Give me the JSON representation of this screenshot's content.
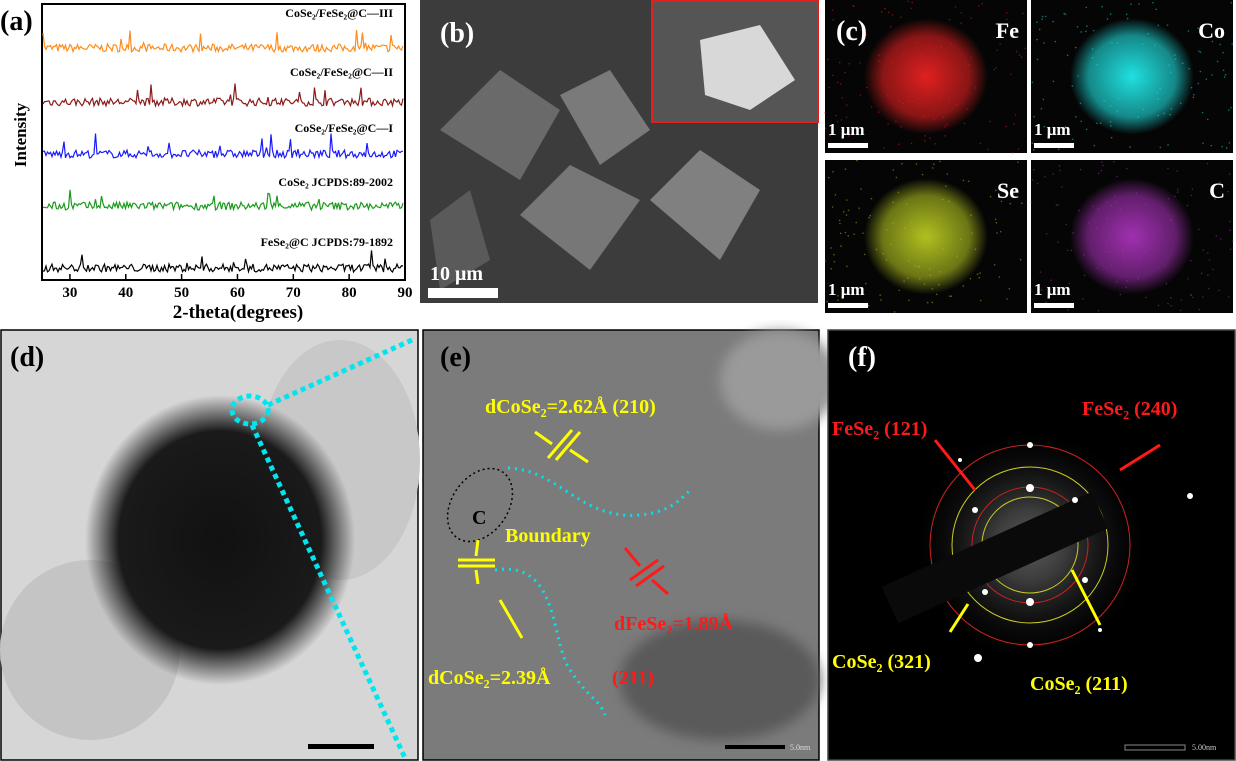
{
  "panels": {
    "a": {
      "label": "(a)",
      "ylabel": "Intensity",
      "xlabel": "2-theta(degrees)",
      "xlim": [
        25,
        90
      ],
      "xticks": [
        30,
        40,
        50,
        60,
        70,
        80,
        90
      ],
      "series": [
        {
          "name": "CoSe₂/FeSe₂@C—III",
          "color": "#ff8c1a"
        },
        {
          "name": "CoSe₂/FeSe₂@C—II",
          "color": "#8b1a1a"
        },
        {
          "name": "CoSe₂/FeSe₂@C—I",
          "color": "#1a1aff"
        },
        {
          "name": "CoSe₂ JCPDS:89-2002",
          "color": "#1a9a1a"
        },
        {
          "name": "FeSe₂@C JCPDS:79-1892",
          "color": "#000000"
        }
      ]
    },
    "b": {
      "label": "(b)",
      "scale": "10 μm"
    },
    "c": {
      "label": "(c)",
      "maps": [
        {
          "element": "Fe",
          "color": "#e02020",
          "scale": "1 μm"
        },
        {
          "element": "Co",
          "color": "#20e0e0",
          "scale": "1 μm"
        },
        {
          "element": "Se",
          "color": "#b0c020",
          "scale": "1 μm"
        },
        {
          "element": "C",
          "color": "#a030b0",
          "scale": "1 μm"
        }
      ]
    },
    "d": {
      "label": "(d)"
    },
    "e": {
      "label": "(e)",
      "d1": "dCoSe₂=2.62Å (210)",
      "carbon": "C",
      "boundary": "Boundary",
      "d2": "dFeSe₂=1.89Å",
      "plane2": "(211)",
      "d3": "dCoSe₂=2.39Å",
      "scale": "5.0nm"
    },
    "f": {
      "label": "(f)",
      "r1": "FeSe₂ (121)",
      "r2": "FeSe₂ (240)",
      "r3": "CoSe₂ (321)",
      "r4": "CoSe₂ (211)",
      "scale": "5.00nm"
    }
  }
}
